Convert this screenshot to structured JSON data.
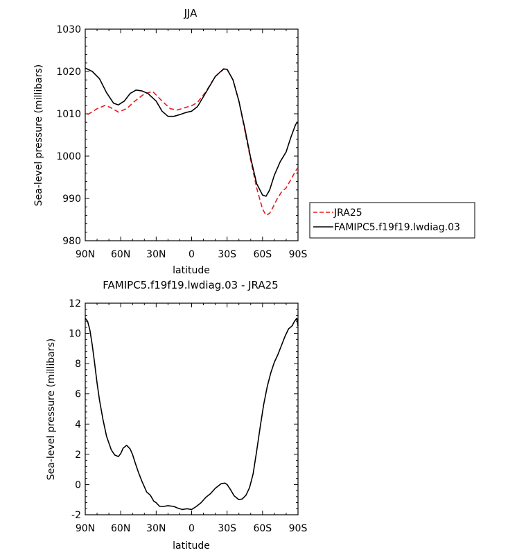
{
  "chart_data": [
    {
      "type": "line",
      "title": "JJA",
      "xlabel": "latitude",
      "ylabel": "Sea-level pressure (millibars)",
      "x_ticks": [
        "90N",
        "60N",
        "30N",
        "0",
        "30S",
        "60S",
        "90S"
      ],
      "y_ticks": [
        "980",
        "990",
        "1000",
        "1010",
        "1020",
        "1030"
      ],
      "xlim": [
        90,
        -90
      ],
      "ylim": [
        980,
        1030
      ],
      "grid": false,
      "legend": {
        "placement": "outside-right"
      },
      "series": [
        {
          "name": "JRA25",
          "color": "#e41a1c",
          "dash": "dashed",
          "x": [
            88,
            80,
            73,
            68,
            62,
            55,
            48,
            40,
            33,
            25,
            18,
            12,
            5,
            0,
            -5,
            -12,
            -20,
            -27,
            -30,
            -35,
            -40,
            -45,
            -50,
            -55,
            -60,
            -63,
            -66,
            -69,
            -72,
            -76,
            -80,
            -84,
            -88,
            -90
          ],
          "y": [
            1009.8,
            1011.2,
            1012.0,
            1011.4,
            1010.4,
            1011.2,
            1013.0,
            1014.7,
            1015.3,
            1013.0,
            1011.2,
            1010.9,
            1011.5,
            1011.9,
            1012.7,
            1015.2,
            1018.8,
            1020.5,
            1020.5,
            1018.0,
            1013.0,
            1006.0,
            999.0,
            992.5,
            987.5,
            986.0,
            986.5,
            988.0,
            989.7,
            991.5,
            992.5,
            994.5,
            996.5,
            997.3
          ]
        },
        {
          "name": "FAMIPC5.f19f19.lwdiag.03",
          "color": "#000000",
          "dash": "solid",
          "x": [
            90,
            84,
            78,
            72,
            66,
            62,
            57,
            52,
            47,
            42,
            37,
            30,
            25,
            20,
            15,
            10,
            5,
            0,
            -5,
            -12,
            -20,
            -27,
            -30,
            -35,
            -40,
            -45,
            -50,
            -55,
            -60,
            -63,
            -66,
            -70,
            -75,
            -80,
            -84,
            -88,
            -90
          ],
          "y": [
            1020.8,
            1020.0,
            1018.3,
            1015.0,
            1012.5,
            1012.1,
            1013.0,
            1014.8,
            1015.6,
            1015.4,
            1014.8,
            1013.0,
            1010.6,
            1009.4,
            1009.4,
            1009.8,
            1010.3,
            1010.6,
            1011.7,
            1015.0,
            1018.8,
            1020.6,
            1020.5,
            1018.0,
            1013.0,
            1006.5,
            999.5,
            993.5,
            990.8,
            990.5,
            992.0,
            995.5,
            998.7,
            1001.0,
            1004.5,
            1007.5,
            1008.0
          ]
        }
      ]
    },
    {
      "type": "line",
      "title": "FAMIPC5.f19f19.lwdiag.03 - JRA25",
      "xlabel": "latitude",
      "ylabel": "Sea-level pressure (millibars)",
      "x_ticks": [
        "90N",
        "60N",
        "30N",
        "0",
        "30S",
        "60S",
        "90S"
      ],
      "y_ticks": [
        "-2",
        "0",
        "2",
        "4",
        "6",
        "8",
        "10",
        "12"
      ],
      "xlim": [
        90,
        -90
      ],
      "ylim": [
        -2,
        12
      ],
      "grid": false,
      "series": [
        {
          "color": "#000000",
          "dash": "solid",
          "x": [
            90,
            88,
            86,
            84,
            82,
            80,
            78,
            75,
            72,
            68,
            65,
            62,
            60,
            58,
            55,
            52,
            50,
            48,
            45,
            42,
            38,
            35,
            32,
            30,
            27,
            24,
            20,
            15,
            12,
            8,
            4,
            0,
            -4,
            -8,
            -12,
            -16,
            -20,
            -25,
            -28,
            -30,
            -33,
            -36,
            -40,
            -43,
            -46,
            -49,
            -52,
            -55,
            -58,
            -61,
            -64,
            -67,
            -70,
            -73,
            -76,
            -79,
            -82,
            -85,
            -87,
            -89,
            -90
          ],
          "y": [
            11.0,
            10.8,
            10.2,
            9.2,
            8.0,
            6.7,
            5.6,
            4.3,
            3.2,
            2.3,
            1.95,
            1.85,
            2.05,
            2.4,
            2.6,
            2.35,
            2.0,
            1.5,
            0.8,
            0.2,
            -0.5,
            -0.7,
            -1.1,
            -1.2,
            -1.45,
            -1.45,
            -1.4,
            -1.45,
            -1.55,
            -1.65,
            -1.6,
            -1.65,
            -1.45,
            -1.2,
            -0.85,
            -0.6,
            -0.25,
            0.05,
            0.1,
            0.0,
            -0.35,
            -0.75,
            -1.0,
            -0.95,
            -0.7,
            -0.2,
            0.7,
            2.2,
            3.8,
            5.3,
            6.5,
            7.4,
            8.1,
            8.6,
            9.2,
            9.8,
            10.3,
            10.5,
            10.8,
            11.0,
            10.5
          ]
        }
      ]
    }
  ]
}
